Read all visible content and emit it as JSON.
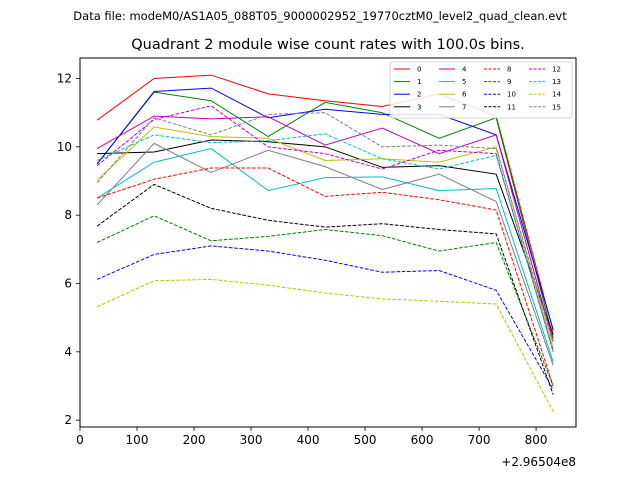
{
  "chart_data": {
    "type": "line",
    "suptitle": "Data file: modeM0/AS1A05_088T05_9000002952_19770cztM0_level2_quad_clean.evt",
    "title": "Quadrant 2 module wise count rates with 100.0s bins.",
    "xlabel": "",
    "ylabel": "",
    "x_offset_label": "+2.96504e8",
    "xlim": [
      0,
      870
    ],
    "ylim": [
      1.8,
      12.6
    ],
    "xticks": [
      0,
      100,
      200,
      300,
      400,
      500,
      600,
      700,
      800
    ],
    "yticks": [
      2,
      4,
      6,
      8,
      10,
      12
    ],
    "grid": false,
    "legend": {
      "location": "top-right",
      "columns": 4
    },
    "x": [
      30,
      130,
      230,
      330,
      430,
      530,
      630,
      730,
      830
    ],
    "series": [
      {
        "name": "0",
        "color": "#ff0000",
        "dash": "solid",
        "values": [
          10.78,
          12.0,
          12.1,
          11.55,
          11.35,
          11.18,
          11.55,
          10.9,
          4.6
        ]
      },
      {
        "name": "1",
        "color": "#008000",
        "dash": "solid",
        "values": [
          9.5,
          11.6,
          11.35,
          10.3,
          11.3,
          11.0,
          10.25,
          10.85,
          4.4
        ]
      },
      {
        "name": "2",
        "color": "#0000ff",
        "dash": "solid",
        "values": [
          9.5,
          11.62,
          11.72,
          10.85,
          11.1,
          10.95,
          10.95,
          10.35,
          4.65
        ]
      },
      {
        "name": "3",
        "color": "#000000",
        "dash": "solid",
        "values": [
          9.8,
          9.85,
          10.2,
          10.15,
          10.0,
          9.4,
          9.45,
          9.2,
          4.5
        ]
      },
      {
        "name": "4",
        "color": "#bf00bf",
        "dash": "solid",
        "values": [
          9.95,
          10.9,
          10.82,
          10.88,
          10.05,
          10.55,
          9.8,
          10.35,
          4.3
        ]
      },
      {
        "name": "5",
        "color": "#00bfbf",
        "dash": "solid",
        "values": [
          8.5,
          9.55,
          9.95,
          8.72,
          9.1,
          9.12,
          8.72,
          8.78,
          3.7
        ]
      },
      {
        "name": "6",
        "color": "#bfbf00",
        "dash": "solid",
        "values": [
          9.02,
          10.58,
          10.3,
          10.25,
          9.6,
          9.65,
          9.55,
          10.0,
          4.1
        ]
      },
      {
        "name": "7",
        "color": "#808080",
        "dash": "solid",
        "values": [
          8.3,
          10.1,
          9.25,
          9.9,
          9.42,
          8.75,
          9.2,
          8.4,
          3.6
        ]
      },
      {
        "name": "8",
        "color": "#ff0000",
        "dash": "dashed",
        "values": [
          8.5,
          9.05,
          9.38,
          9.38,
          8.55,
          8.67,
          8.45,
          8.15,
          3.0
        ]
      },
      {
        "name": "9",
        "color": "#008000",
        "dash": "dashed",
        "values": [
          7.2,
          7.98,
          7.25,
          7.38,
          7.58,
          7.4,
          6.95,
          7.2,
          3.0
        ]
      },
      {
        "name": "10",
        "color": "#0000ff",
        "dash": "dashed",
        "values": [
          6.12,
          6.85,
          7.1,
          6.95,
          6.68,
          6.33,
          6.38,
          5.8,
          2.9
        ]
      },
      {
        "name": "11",
        "color": "#000000",
        "dash": "dashed",
        "values": [
          7.68,
          8.9,
          8.2,
          7.85,
          7.65,
          7.75,
          7.58,
          7.45,
          2.75
        ]
      },
      {
        "name": "12",
        "color": "#bf00bf",
        "dash": "dashed",
        "values": [
          9.45,
          10.8,
          11.2,
          10.0,
          9.8,
          9.35,
          9.9,
          9.8,
          4.0
        ]
      },
      {
        "name": "13",
        "color": "#00bfbf",
        "dash": "dashed",
        "values": [
          9.6,
          10.35,
          10.12,
          10.18,
          10.38,
          9.65,
          9.35,
          9.75,
          4.0
        ]
      },
      {
        "name": "14",
        "color": "#bfbf00",
        "dash": "dashed",
        "values": [
          5.32,
          6.08,
          6.12,
          5.95,
          5.72,
          5.55,
          5.48,
          5.4,
          2.25
        ]
      },
      {
        "name": "15",
        "color": "#808080",
        "dash": "dashed",
        "values": [
          8.95,
          10.85,
          10.35,
          10.95,
          11.0,
          10.0,
          10.05,
          9.95,
          4.25
        ]
      }
    ]
  }
}
